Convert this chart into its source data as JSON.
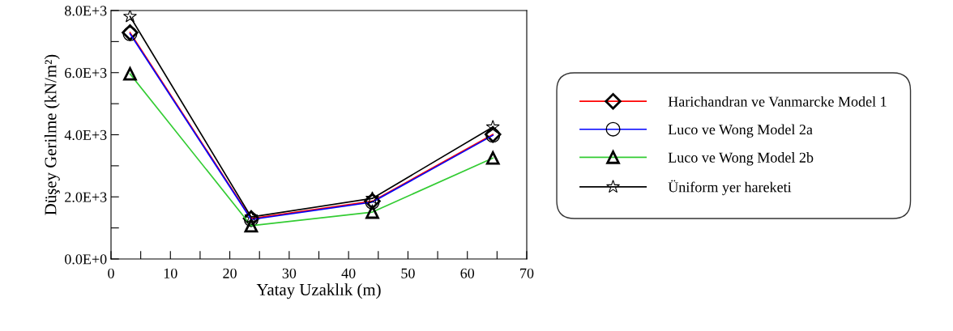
{
  "chart_data": {
    "type": "line",
    "xlabel": "Yatay Uzaklık (m)",
    "ylabel": "Düşey Gerilme (kN/m²)",
    "x": [
      3.2,
      23.6,
      44,
      64.3
    ],
    "series": [
      {
        "name": "Harichandran ve Vanmarcke Model 1",
        "color": "#ff0000",
        "marker": "diamond",
        "values": [
          7290,
          1300,
          1860,
          4010
        ]
      },
      {
        "name": "Luco ve Wong Model 2a",
        "color": "#0000ff",
        "marker": "circle",
        "values": [
          7250,
          1270,
          1830,
          3980
        ]
      },
      {
        "name": "Luco ve Wong Model 2b",
        "color": "#33cc33",
        "marker": "triangle",
        "values": [
          5960,
          1070,
          1510,
          3250
        ]
      },
      {
        "name": "Üniform yer hareketi",
        "color": "#000000",
        "marker": "star",
        "values": [
          7810,
          1350,
          1950,
          4250
        ]
      }
    ],
    "xlim": [
      0,
      70
    ],
    "xticks": [
      0,
      {
        "value": 5,
        "label": null
      },
      10,
      {
        "value": 15,
        "label": null
      },
      20,
      {
        "value": 25,
        "label": null
      },
      30,
      {
        "value": 35,
        "label": null
      },
      40,
      {
        "value": 45,
        "label": null
      },
      50,
      {
        "value": 55,
        "label": null
      },
      60,
      {
        "value": 65,
        "label": null
      },
      70
    ],
    "ylim": [
      0,
      8000
    ],
    "yticks": [
      {
        "value": 0,
        "label": "0.0E+0"
      },
      {
        "value": 1000,
        "label": null
      },
      {
        "value": 2000,
        "label": "2.0E+3"
      },
      {
        "value": 3000,
        "label": null
      },
      {
        "value": 4000,
        "label": "4.0E+3"
      },
      {
        "value": 5000,
        "label": null
      },
      {
        "value": 6000,
        "label": "6.0E+3"
      },
      {
        "value": 7000,
        "label": null
      },
      {
        "value": 8000,
        "label": "8.0E+3"
      }
    ],
    "grid": false,
    "legend": "right"
  }
}
